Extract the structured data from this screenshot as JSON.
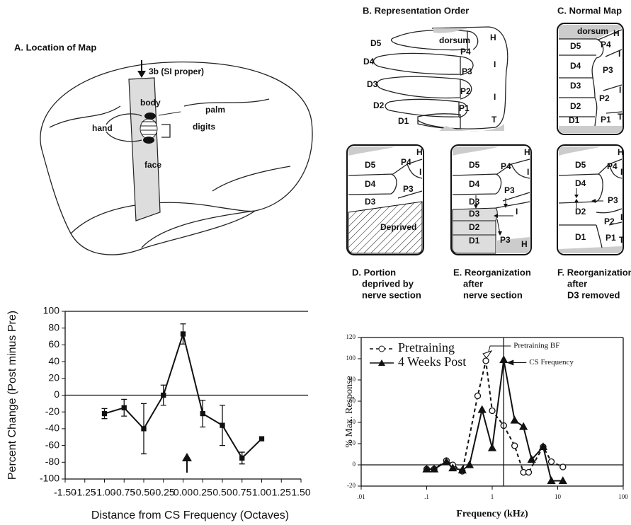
{
  "figure": {
    "panel_a": {
      "title": "A. Location of Map",
      "labels": [
        "3b (SI proper)",
        "body",
        "palm",
        "hand",
        "digits",
        "face"
      ]
    },
    "panel_b": {
      "title": "B. Representation Order",
      "labels": [
        "D5",
        "D4",
        "D3",
        "D2",
        "D1",
        "dorsum",
        "H",
        "P4",
        "I",
        "P3",
        "P2",
        "I",
        "P1",
        "T"
      ]
    },
    "panel_c": {
      "title": "C. Normal Map",
      "labels": [
        "dorsum",
        "D5",
        "P4",
        "H",
        "I",
        "D4",
        "P3",
        "D3",
        "P2",
        "D2",
        "I",
        "T",
        "D1",
        "P1"
      ]
    },
    "panel_d": {
      "title": [
        "D. Portion",
        "deprived by",
        "nerve section"
      ],
      "labels": [
        "D5",
        "P4",
        "H",
        "I",
        "D4",
        "P3",
        "D3",
        "Deprived"
      ]
    },
    "panel_e": {
      "title": [
        "E. Reorganization",
        "after",
        "nerve section"
      ],
      "labels": [
        "D5",
        "P4",
        "H",
        "I",
        "D4",
        "P3",
        "D3",
        "D3",
        "I",
        "D2",
        "D1",
        "P3",
        "H"
      ]
    },
    "panel_f": {
      "title": [
        "F. Reorganization",
        "after",
        "D3 removed"
      ],
      "labels": [
        "D5",
        "P4",
        "H",
        "I",
        "D4",
        "P3",
        "D2",
        "P2",
        "I",
        "D1",
        "P1",
        "T"
      ]
    }
  },
  "chart_data": [
    {
      "type": "line",
      "x_label": "Distance from CS Frequency (Octaves)",
      "y_label": "Percent Change (Post minus Pre)",
      "x": [
        -1.0,
        -0.75,
        -0.5,
        -0.25,
        0,
        0.25,
        0.5,
        0.75,
        1.0
      ],
      "values": [
        -22,
        -15,
        -40,
        0,
        73,
        -22,
        -36,
        -75,
        -52
      ],
      "errors": [
        6,
        10,
        30,
        12,
        12,
        16,
        24,
        7,
        null
      ],
      "color": "#111111",
      "xlim": [
        -1.5,
        1.5
      ],
      "xticks": [
        {
          "value": -1.5,
          "label": "-1.50"
        },
        {
          "value": -1.25,
          "label": "-1.25"
        },
        {
          "value": -1.0,
          "label": "-1.00"
        },
        {
          "value": -0.75,
          "label": "-0.75"
        },
        {
          "value": -0.5,
          "label": "-0.50"
        },
        {
          "value": -0.25,
          "label": "-0.25"
        },
        {
          "value": 0,
          "label": "0.00"
        },
        {
          "value": 0.25,
          "label": "0.25"
        },
        {
          "value": 0.5,
          "label": "0.50"
        },
        {
          "value": 0.75,
          "label": "0.75"
        },
        {
          "value": 1.0,
          "label": "1.00"
        },
        {
          "value": 1.25,
          "label": "1.25"
        },
        {
          "value": 1.5,
          "label": "1.50"
        }
      ],
      "ylim": [
        -100,
        100
      ],
      "yticks": [
        -100,
        -80,
        -60,
        -40,
        -20,
        0,
        20,
        40,
        60,
        80,
        100
      ]
    },
    {
      "type": "line",
      "x_label": "Frequency (kHz)",
      "y_label": "% Max. Response",
      "x_scale": "log",
      "legend": "upper left",
      "series": [
        {
          "name": "Pretraining",
          "color": "#111111",
          "marker": "circle",
          "dashed": true,
          "x": [
            0.1,
            0.13,
            0.2,
            0.25,
            0.35,
            0.6,
            0.8,
            1.0,
            1.5,
            2.2,
            3,
            3.6,
            6,
            8,
            12
          ],
          "values": [
            -4,
            -4,
            4,
            0,
            -6,
            65,
            98,
            51,
            37,
            18,
            -7,
            -7,
            17,
            3,
            -2
          ]
        },
        {
          "name": "4 Weeks Post",
          "color": "#111111",
          "marker": "triangle",
          "dashed": false,
          "x": [
            0.1,
            0.13,
            0.2,
            0.25,
            0.35,
            0.45,
            0.7,
            1.0,
            1.5,
            2.2,
            3,
            4,
            6,
            8,
            12
          ],
          "values": [
            -4,
            -4,
            3,
            -3,
            -5,
            0,
            52,
            16,
            99,
            42,
            36,
            5,
            17,
            -15,
            -15
          ]
        }
      ],
      "annotations": [
        "Pretraining BF",
        "CS Frequency"
      ],
      "xlim": [
        0.01,
        100
      ],
      "xticks": [
        {
          "value": 0.01,
          "label": ".01"
        },
        {
          "value": 0.1,
          "label": ".1"
        },
        1,
        10,
        100
      ],
      "ylim": [
        -20,
        120
      ],
      "yticks": [
        -20,
        0,
        20,
        40,
        60,
        80,
        100,
        120
      ]
    }
  ]
}
